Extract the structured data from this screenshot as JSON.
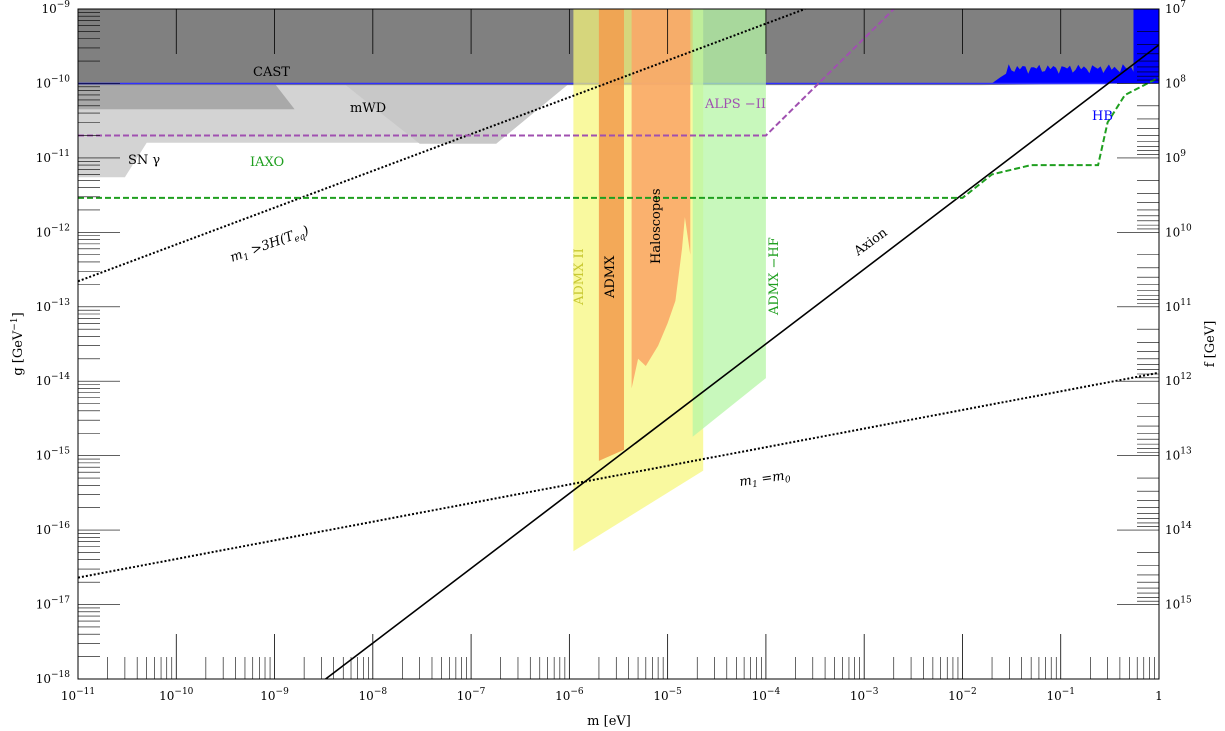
{
  "chart_data": {
    "type": "line",
    "xlabel": "m [eV]",
    "ylabel": "g [GeV",
    "ylabel_sup": "−1",
    "ylabel_close": "]",
    "y2label": "f [GeV]",
    "x_scale": "log",
    "y_scale": "log",
    "xlim_exp": [
      -11,
      0
    ],
    "ylim_exp": [
      -18,
      -9
    ],
    "x_tick_exps": [
      -11,
      -10,
      -9,
      -8,
      -7,
      -6,
      -5,
      -4,
      -3,
      -2,
      -1
    ],
    "y_tick_exps": [
      -9,
      -10,
      -11,
      -12,
      -13,
      -14,
      -15,
      -16,
      -17,
      -18
    ],
    "y2_tick_exps": [
      7,
      8,
      9,
      10,
      11,
      12,
      13,
      14,
      15
    ],
    "tick_base": "10",
    "x_end_label": "1",
    "colors": {
      "cast": "#808080",
      "mwd": "#b8b8b8",
      "sn": "#d3d3d3",
      "hb": "#0000ff",
      "admx2": "#f7f77a",
      "admx": "#f2a050",
      "haloscopes": "#f9a968",
      "admx_hf": "#b5f5a5",
      "iaxo": "#1f9f1f",
      "alps": "#a050b0"
    },
    "regions": [
      {
        "name": "CAST",
        "label": "CAST",
        "color": "#808080"
      },
      {
        "name": "mWD",
        "label": "mWD",
        "color": "#b8b8b8"
      },
      {
        "name": "SN gamma",
        "label": "SN  γ",
        "color": "#d3d3d3"
      },
      {
        "name": "HB",
        "label": "HB",
        "color": "#0000ff"
      },
      {
        "name": "ADMX II",
        "label": "ADMX  II",
        "color": "#f7f77a",
        "x_range": [
          1.1e-06,
          2.3e-05
        ]
      },
      {
        "name": "ADMX",
        "label": "ADMX",
        "color": "#f2a050",
        "x_range": [
          2e-06,
          3.6e-06
        ]
      },
      {
        "name": "Haloscopes",
        "label": "Haloscopes",
        "color": "#f9a968",
        "x_range": [
          4.3e-06,
          2e-05
        ]
      },
      {
        "name": "ADMX-HF",
        "label": "ADMX −HF",
        "color": "#b5f5a5",
        "x_range": [
          1.8e-05,
          0.0001
        ]
      }
    ],
    "lines": [
      {
        "name": "Axion",
        "label": "Axion",
        "style": "solid",
        "points": [
          [
            1e-09,
            3e-19
          ],
          [
            1,
            3.3e-10
          ]
        ]
      },
      {
        "name": "m1 > 3H(Teq)",
        "label_main": "m",
        "label_sub1": "1",
        "label_rest": " >3H(T",
        "label_sub2": "eq",
        "label_end": ")",
        "style": "dotted",
        "points": [
          [
            1e-11,
            2.2e-13
          ],
          [
            0.00025,
            1e-09
          ]
        ]
      },
      {
        "name": "m1 = m0",
        "label_main": "m",
        "label_sub1": "1",
        "label_mid": " =m",
        "label_sub2": "0",
        "style": "dotted",
        "points": [
          [
            1e-11,
            2.3e-17
          ],
          [
            1,
            1.3e-14
          ]
        ]
      },
      {
        "name": "IAXO",
        "label": "IAXO",
        "style": "dashed",
        "points": [
          [
            1e-11,
            2.9e-12
          ],
          [
            0.01,
            2.9e-12
          ],
          [
            0.02,
            6e-12
          ],
          [
            0.05,
            8e-12
          ],
          [
            0.24,
            8e-12
          ],
          [
            0.3,
            3e-11
          ],
          [
            0.45,
            7e-11
          ],
          [
            1,
            1.2e-10
          ]
        ]
      },
      {
        "name": "ALPS-II",
        "label": "ALPS −II",
        "style": "dashed",
        "points": [
          [
            1e-11,
            2e-11
          ],
          [
            0.0001,
            2e-11
          ],
          [
            0.002,
            1e-09
          ]
        ]
      }
    ]
  }
}
